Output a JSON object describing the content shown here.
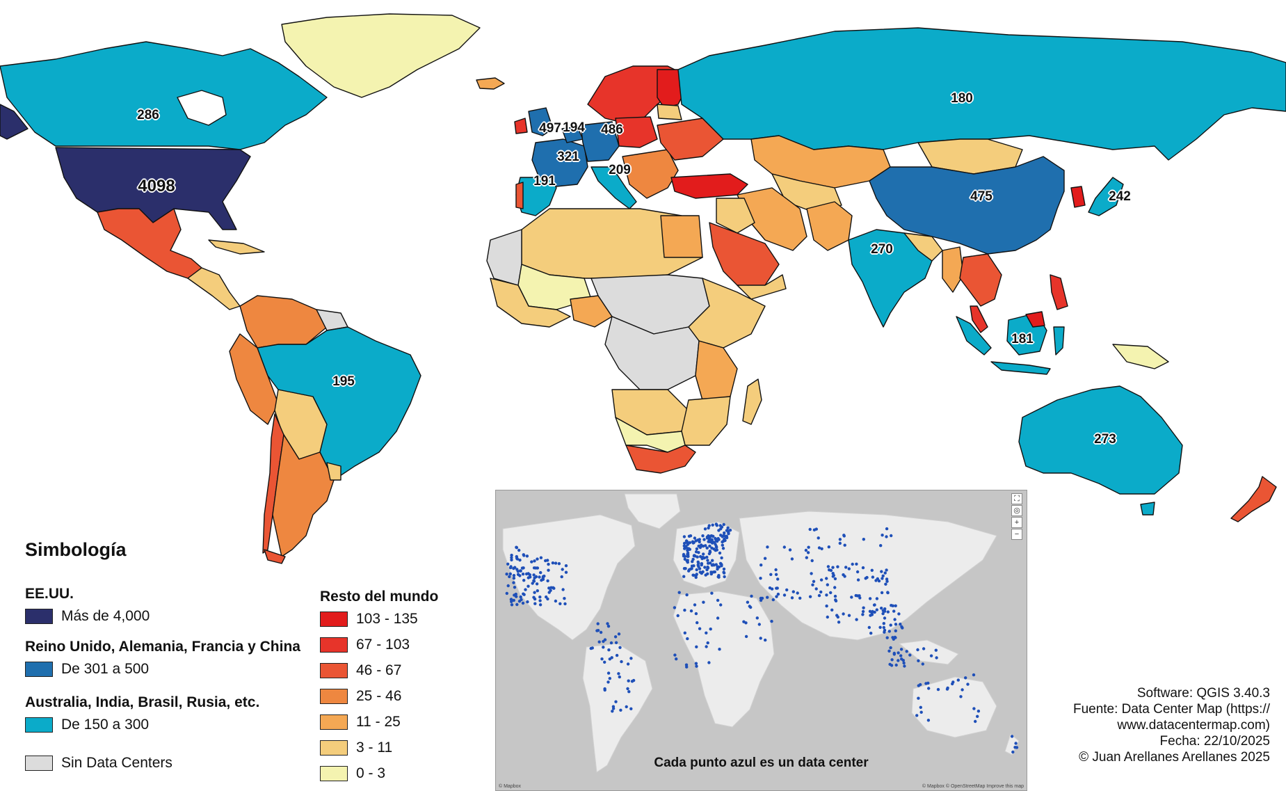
{
  "map_labels": {
    "usa": "4098",
    "canada": "286",
    "russia": "180",
    "uk": "497",
    "netherlands": "194",
    "germany": "486",
    "france": "321",
    "spain": "191",
    "italy": "209",
    "china": "475",
    "japan": "242",
    "india": "270",
    "indonesia": "181",
    "brazil": "195",
    "australia": "273"
  },
  "legend": {
    "title": "Simbología",
    "usa_head": "EE.UU.",
    "usa_item": "Más de 4,000",
    "group2_head": "Reino Unido, Alemania, Francia y China",
    "group2_item": "De 301 a 500",
    "group3_head": "Australia, India, Brasil, Rusia, etc.",
    "group3_item": "De 150 a 300",
    "none_item": "Sin Data Centers",
    "rest_head": "Resto del mundo",
    "rest_items": [
      "103 - 135",
      "67 - 103",
      "46 - 67",
      "25 - 46",
      "11 - 25",
      "3 - 11",
      "0 - 3"
    ]
  },
  "colors": {
    "usa": "#2b2f6b",
    "group2": "#1f6fae",
    "group3": "#0babc9",
    "none": "#dcdcdc",
    "rest": [
      "#e21c1c",
      "#e7342a",
      "#ea5534",
      "#ee8740",
      "#f4a854",
      "#f4cd7c",
      "#f4f3b0"
    ],
    "inset_land": "#ececec",
    "inset_water": "#c6c6c6",
    "inset_dot": "#1e4fb8"
  },
  "inset": {
    "caption": "Cada punto azul es un data center",
    "attribution_left": "© Mapbox",
    "attribution_right": "© Mapbox © OpenStreetMap Improve this map"
  },
  "credits": {
    "software": "Software: QGIS 3.40.3",
    "source_1": "Fuente: Data Center Map (https://",
    "source_2": "www.datacentermap.com)",
    "date": "Fecha: 22/10/2025",
    "author": "© Juan Arellanes Arellanes 2025"
  }
}
